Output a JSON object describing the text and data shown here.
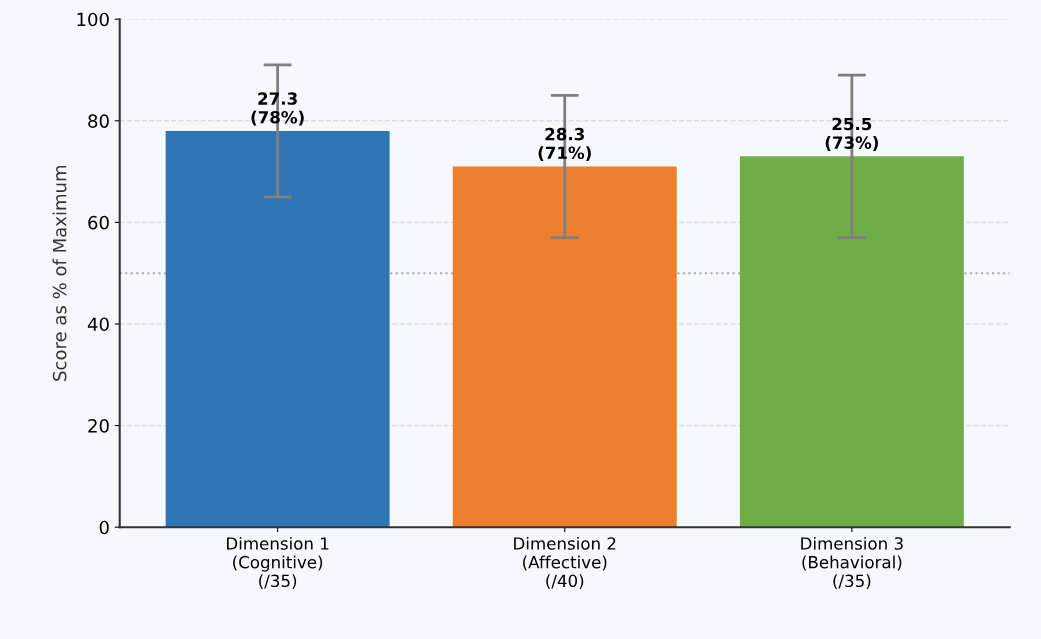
{
  "chart_data": {
    "type": "bar",
    "ylabel": "Score as % of Maximum",
    "categories": [
      "Dimension 1\n(Cognitive)\n(/35)",
      "Dimension 2\n(Affective)\n(/40)",
      "Dimension 3\n(Behavioral)\n(/35)"
    ],
    "values": [
      78,
      71,
      73
    ],
    "colors": [
      "#2e75b6",
      "#ed7d31",
      "#70ad47"
    ],
    "errors": [
      13,
      14,
      16
    ],
    "value_labels": [
      "27.3\n(78%)",
      "28.3\n(71%)",
      "25.5\n(73%)"
    ],
    "ylim": [
      0,
      100
    ],
    "yticks": [
      0,
      20,
      40,
      60,
      80,
      100
    ],
    "ref_lines": [
      {
        "axis": "y",
        "value": 50,
        "label": null,
        "color": "#aaaaaa",
        "line_style": "dotted"
      }
    ],
    "grid": "y",
    "legend": false
  }
}
